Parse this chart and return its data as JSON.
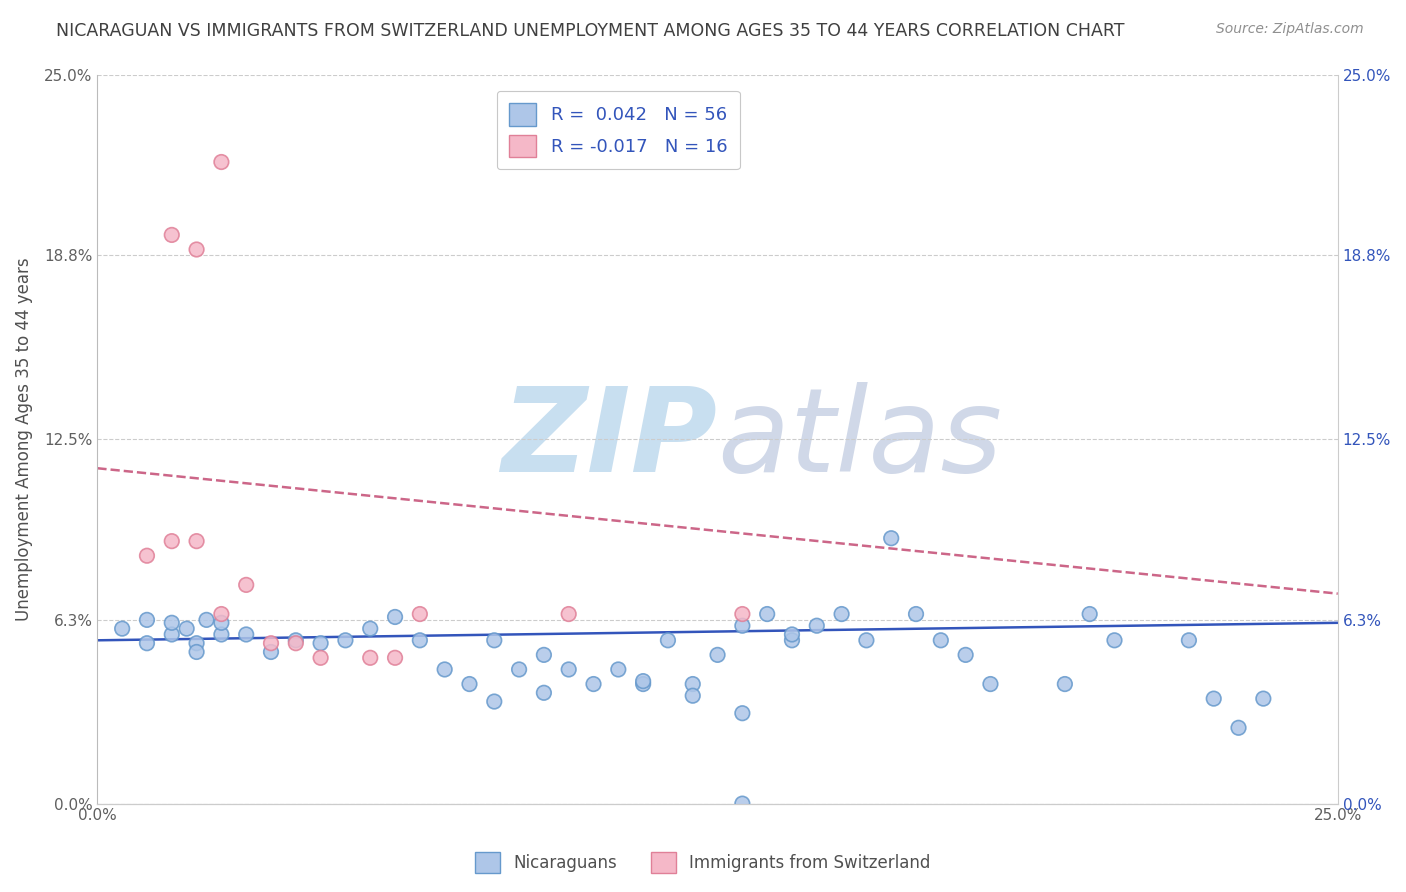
{
  "title": "NICARAGUAN VS IMMIGRANTS FROM SWITZERLAND UNEMPLOYMENT AMONG AGES 35 TO 44 YEARS CORRELATION CHART",
  "source": "Source: ZipAtlas.com",
  "ylabel": "Unemployment Among Ages 35 to 44 years",
  "xlim": [
    0.0,
    0.25
  ],
  "ylim": [
    0.0,
    0.25
  ],
  "ytick_labels": [
    "0.0%",
    "6.3%",
    "12.5%",
    "18.8%",
    "25.0%"
  ],
  "ytick_values": [
    0.0,
    0.063,
    0.125,
    0.188,
    0.25
  ],
  "watermark_zip": "ZIP",
  "watermark_atlas": "atlas",
  "blue_scatter_x": [
    0.005,
    0.01,
    0.015,
    0.018,
    0.02,
    0.022,
    0.025,
    0.01,
    0.015,
    0.02,
    0.025,
    0.03,
    0.035,
    0.04,
    0.045,
    0.05,
    0.055,
    0.06,
    0.065,
    0.07,
    0.075,
    0.08,
    0.085,
    0.09,
    0.095,
    0.1,
    0.105,
    0.11,
    0.115,
    0.12,
    0.125,
    0.13,
    0.135,
    0.14,
    0.145,
    0.15,
    0.155,
    0.16,
    0.165,
    0.17,
    0.175,
    0.18,
    0.195,
    0.2,
    0.205,
    0.22,
    0.225,
    0.23,
    0.235,
    0.13,
    0.08,
    0.09,
    0.11,
    0.12,
    0.14,
    0.13
  ],
  "blue_scatter_y": [
    0.06,
    0.063,
    0.058,
    0.06,
    0.055,
    0.063,
    0.058,
    0.055,
    0.062,
    0.052,
    0.062,
    0.058,
    0.052,
    0.056,
    0.055,
    0.056,
    0.06,
    0.064,
    0.056,
    0.046,
    0.041,
    0.056,
    0.046,
    0.051,
    0.046,
    0.041,
    0.046,
    0.041,
    0.056,
    0.041,
    0.051,
    0.061,
    0.065,
    0.056,
    0.061,
    0.065,
    0.056,
    0.091,
    0.065,
    0.056,
    0.051,
    0.041,
    0.041,
    0.065,
    0.056,
    0.056,
    0.036,
    0.026,
    0.036,
    0.0,
    0.035,
    0.038,
    0.042,
    0.037,
    0.058,
    0.031
  ],
  "pink_scatter_x": [
    0.01,
    0.015,
    0.02,
    0.02,
    0.025,
    0.025,
    0.03,
    0.035,
    0.04,
    0.045,
    0.055,
    0.06,
    0.065,
    0.015,
    0.095,
    0.13
  ],
  "pink_scatter_y": [
    0.085,
    0.195,
    0.19,
    0.09,
    0.22,
    0.065,
    0.075,
    0.055,
    0.055,
    0.05,
    0.05,
    0.05,
    0.065,
    0.09,
    0.065,
    0.065
  ],
  "blue_line_x": [
    0.0,
    0.25
  ],
  "blue_line_y": [
    0.056,
    0.062
  ],
  "pink_line_x": [
    0.0,
    0.25
  ],
  "pink_line_y": [
    0.115,
    0.072
  ],
  "legend_blue_r": "0.042",
  "legend_blue_n": "56",
  "legend_pink_r": "-0.017",
  "legend_pink_n": "16",
  "blue_face": "#aec6e8",
  "blue_edge": "#6699cc",
  "pink_face": "#f5b8c8",
  "pink_edge": "#e08098",
  "blue_line_color": "#3355bb",
  "pink_line_color": "#cc6688",
  "legend_text_color": "#3355bb",
  "title_color": "#404040",
  "source_color": "#909090",
  "grid_color": "#cccccc",
  "right_axis_color": "#3355bb",
  "background_color": "#ffffff"
}
